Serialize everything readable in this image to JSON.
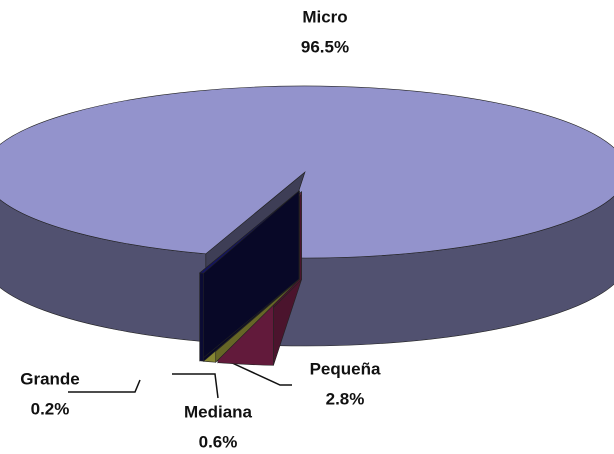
{
  "chart_data": {
    "type": "pie",
    "categories": [
      "Micro",
      "Pequeña",
      "Mediana",
      "Grande"
    ],
    "values": [
      96.5,
      2.8,
      0.6,
      0.2
    ],
    "value_labels": [
      "96.5%",
      "2.8%",
      "0.6%",
      "0.2%"
    ],
    "colors": [
      "#9393cc",
      "#b2306c",
      "#f4f45a",
      "#14145e"
    ]
  }
}
